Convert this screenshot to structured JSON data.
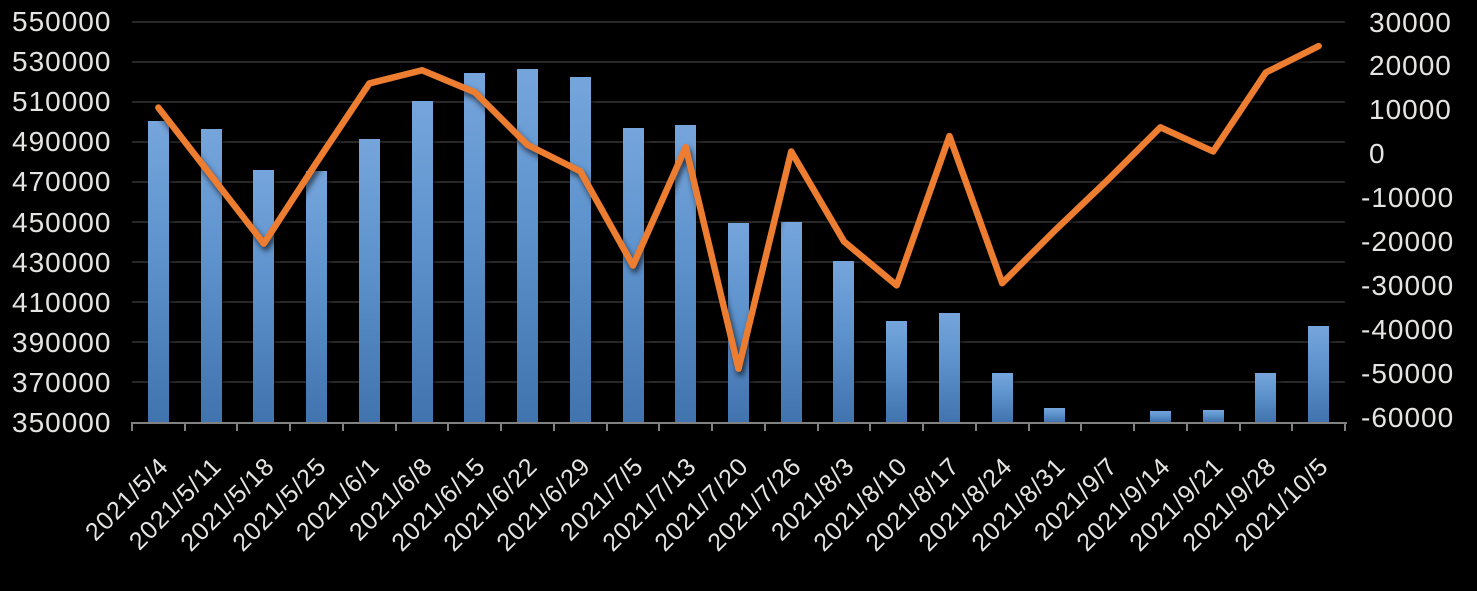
{
  "chart_data": {
    "type": "combo-bar-line",
    "title": "",
    "legend": "none",
    "grid": "horizontal",
    "categories": [
      "2021/5/4",
      "2021/5/11",
      "2021/5/18",
      "2021/5/25",
      "2021/6/1",
      "2021/6/8",
      "2021/6/15",
      "2021/6/22",
      "2021/6/29",
      "2021/7/5",
      "2021/7/13",
      "2021/7/20",
      "2021/7/26",
      "2021/8/3",
      "2021/8/10",
      "2021/8/17",
      "2021/8/24",
      "2021/8/31",
      "2021/9/7",
      "2021/9/14",
      "2021/9/21",
      "2021/9/28",
      "2021/10/5"
    ],
    "series": [
      {
        "name": "bars",
        "type": "bar",
        "axis": "left",
        "values": [
          500500,
          496500,
          476000,
          475500,
          491500,
          510500,
          524500,
          526500,
          522500,
          497000,
          498500,
          449500,
          450000,
          430500,
          400500,
          404500,
          374500,
          357000,
          null,
          355500,
          356000,
          374500,
          398000
        ]
      },
      {
        "name": "line",
        "type": "line",
        "axis": "right",
        "values": [
          10500,
          -5000,
          -20500,
          -2000,
          16000,
          19000,
          14000,
          2000,
          -4000,
          -25500,
          1500,
          -49000,
          500,
          -20000,
          -30000,
          4000,
          -29500,
          -17500,
          -6000,
          6000,
          500,
          18500,
          24500
        ]
      }
    ],
    "y_axis_left": {
      "min": 350000,
      "max": 550000,
      "tick_step": 20000,
      "tick_labels": [
        "550000",
        "530000",
        "510000",
        "490000",
        "470000",
        "450000",
        "430000",
        "410000",
        "390000",
        "370000",
        "350000"
      ]
    },
    "y_axis_right": {
      "min": -60000,
      "max": 30000,
      "tick_step": 10000,
      "tick_labels": [
        "30000",
        "20000",
        "10000",
        "0",
        "-10000",
        "-20000",
        "-30000",
        "-40000",
        "-50000",
        "-60000"
      ]
    }
  },
  "colors": {
    "background": "#000000",
    "bar_gradient_top": "#76A5DC",
    "bar_gradient_bottom": "#4173AF",
    "line": "#ED7D31",
    "gridline": "#282828",
    "axis": "#818181",
    "label_text": "#E5E4E2"
  }
}
